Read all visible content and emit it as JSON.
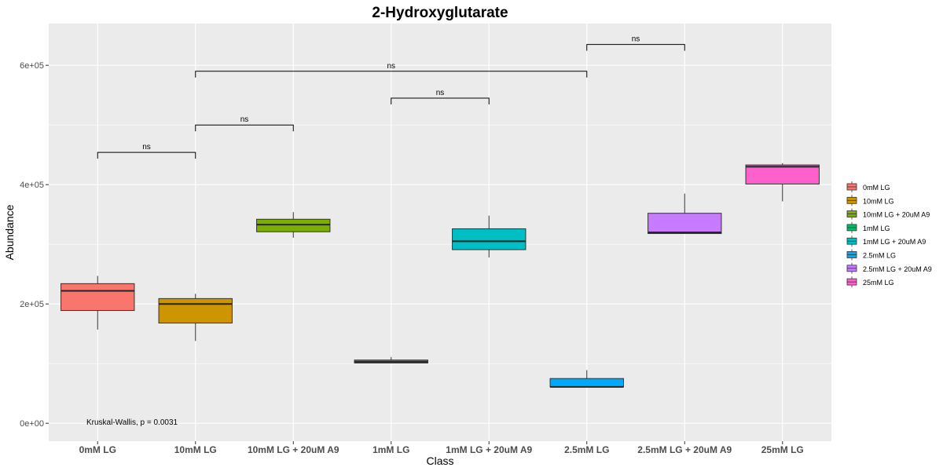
{
  "chart_data": {
    "type": "box",
    "title": "2-Hydroxyglutarate",
    "xlabel": "Class",
    "ylabel": "Abundance",
    "ylim": [
      -30000,
      670000
    ],
    "y_ticks": [
      0,
      200000,
      400000,
      600000
    ],
    "y_tick_labels": [
      "0e+00",
      "2e+05",
      "4e+05",
      "6e+05"
    ],
    "categories": [
      "0mM LG",
      "10mM LG",
      "10mM LG + 20uM A9",
      "1mM LG",
      "1mM LG + 20uM A9",
      "2.5mM LG",
      "2.5mM LG + 20uM A9",
      "25mM LG"
    ],
    "colors": [
      "#F8766D",
      "#CD9600",
      "#7CAE00",
      "#00BE67",
      "#00BFC4",
      "#00A9FF",
      "#C77CFF",
      "#FF61CC"
    ],
    "boxes": [
      {
        "lower_whisker": 157000,
        "q1": 189000,
        "median": 222000,
        "q3": 234000,
        "upper_whisker": 247000
      },
      {
        "lower_whisker": 138000,
        "q1": 168000,
        "median": 200000,
        "q3": 209000,
        "upper_whisker": 217000
      },
      {
        "lower_whisker": 311000,
        "q1": 321000,
        "median": 333000,
        "q3": 342000,
        "upper_whisker": 354000
      },
      {
        "lower_whisker": 101000,
        "q1": 101000,
        "median": 103000,
        "q3": 106000,
        "upper_whisker": 111000
      },
      {
        "lower_whisker": 278000,
        "q1": 291000,
        "median": 305000,
        "q3": 326000,
        "upper_whisker": 348000
      },
      {
        "lower_whisker": 61000,
        "q1": 61000,
        "median": 61000,
        "q3": 75000,
        "upper_whisker": 89000
      },
      {
        "lower_whisker": 318000,
        "q1": 318000,
        "median": 320000,
        "q3": 352000,
        "upper_whisker": 385000
      },
      {
        "lower_whisker": 372000,
        "q1": 401000,
        "median": 430000,
        "q3": 433000,
        "upper_whisker": 436000
      }
    ],
    "comparisons": [
      {
        "from": 0,
        "to": 1,
        "y": 454000,
        "label": "ns"
      },
      {
        "from": 1,
        "to": 2,
        "y": 500000,
        "label": "ns"
      },
      {
        "from": 3,
        "to": 4,
        "y": 545000,
        "label": "ns"
      },
      {
        "from": 1,
        "to": 5,
        "y": 590000,
        "label": "ns"
      },
      {
        "from": 5,
        "to": 6,
        "y": 635000,
        "label": "ns"
      }
    ],
    "annotation": "Kruskal-Wallis, p = 0.0031",
    "annotation_value": 0,
    "legend_position": "right",
    "grid": true
  }
}
